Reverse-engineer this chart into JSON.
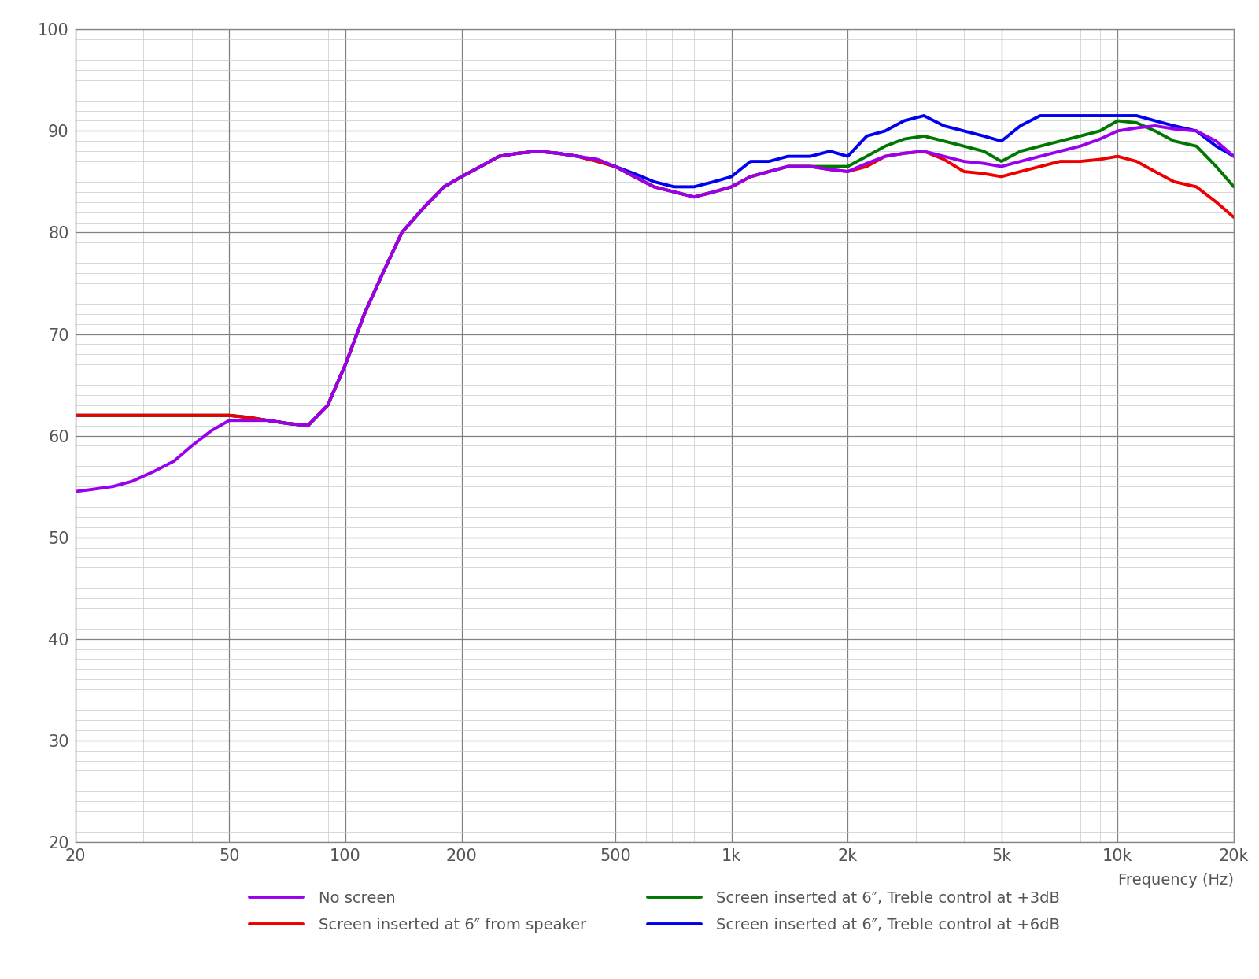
{
  "title": "",
  "xlabel": "Frequency (Hz)",
  "ylabel": "",
  "xmin": 20,
  "xmax": 20000,
  "ymin": 20,
  "ymax": 100,
  "yticks": [
    20,
    30,
    40,
    50,
    60,
    70,
    80,
    90,
    100
  ],
  "xtick_labels": [
    "20",
    "50",
    "100",
    "200",
    "500",
    "1k",
    "2k",
    "5k",
    "10k",
    "20k"
  ],
  "xtick_values": [
    20,
    50,
    100,
    200,
    500,
    1000,
    2000,
    5000,
    10000,
    20000
  ],
  "bg_color": "#ffffff",
  "grid_major_color": "#808080",
  "grid_minor_color": "#c8c8c8",
  "legend_entries": [
    {
      "label": "No screen",
      "color": "#9900ee"
    },
    {
      "label": "Screen inserted at 6″ from speaker",
      "color": "#ee0000"
    },
    {
      "label": "Screen inserted at 6″, Treble control at +3dB",
      "color": "#007700"
    },
    {
      "label": "Screen inserted at 6″, Treble control at +6dB",
      "color": "#0000ee"
    }
  ],
  "line_width": 2.8,
  "freqs": [
    20,
    22,
    25,
    28,
    32,
    36,
    40,
    45,
    50,
    56,
    63,
    71,
    80,
    90,
    100,
    112,
    125,
    140,
    160,
    180,
    200,
    224,
    250,
    280,
    315,
    355,
    400,
    450,
    500,
    560,
    630,
    710,
    800,
    900,
    1000,
    1120,
    1250,
    1400,
    1600,
    1800,
    2000,
    2240,
    2500,
    2800,
    3150,
    3550,
    4000,
    4500,
    5000,
    5600,
    6300,
    7100,
    8000,
    9000,
    10000,
    11200,
    12500,
    14000,
    16000,
    18000,
    20000
  ],
  "no_screen": [
    54.5,
    54.7,
    55.0,
    55.5,
    56.5,
    57.5,
    59.0,
    60.5,
    61.5,
    61.5,
    61.5,
    61.2,
    61.0,
    63.0,
    67.0,
    72.0,
    76.0,
    80.0,
    82.5,
    84.5,
    85.5,
    86.5,
    87.5,
    87.8,
    88.0,
    87.8,
    87.5,
    87.2,
    86.5,
    85.5,
    84.5,
    84.0,
    83.5,
    84.0,
    84.5,
    85.5,
    86.0,
    86.5,
    86.5,
    86.2,
    86.0,
    86.8,
    87.5,
    87.8,
    88.0,
    87.5,
    87.0,
    86.8,
    86.5,
    87.0,
    87.5,
    88.0,
    88.5,
    89.2,
    90.0,
    90.3,
    90.5,
    90.2,
    90.0,
    89.0,
    87.5
  ],
  "screen_6in": [
    62.0,
    62.0,
    62.0,
    62.0,
    62.0,
    62.0,
    62.0,
    62.0,
    62.0,
    61.8,
    61.5,
    61.2,
    61.0,
    63.0,
    67.0,
    72.0,
    76.0,
    80.0,
    82.5,
    84.5,
    85.5,
    86.5,
    87.5,
    87.8,
    88.0,
    87.8,
    87.5,
    87.0,
    86.5,
    85.5,
    84.5,
    84.0,
    83.5,
    84.0,
    84.5,
    85.5,
    86.0,
    86.5,
    86.5,
    86.2,
    86.0,
    86.5,
    87.5,
    87.8,
    88.0,
    87.2,
    86.0,
    85.8,
    85.5,
    86.0,
    86.5,
    87.0,
    87.0,
    87.2,
    87.5,
    87.0,
    86.0,
    85.0,
    84.5,
    83.0,
    81.5
  ],
  "screen_3db": [
    62.0,
    62.0,
    62.0,
    62.0,
    62.0,
    62.0,
    62.0,
    62.0,
    62.0,
    61.8,
    61.5,
    61.2,
    61.0,
    63.0,
    67.0,
    72.0,
    76.0,
    80.0,
    82.5,
    84.5,
    85.5,
    86.5,
    87.5,
    87.8,
    88.0,
    87.8,
    87.5,
    87.0,
    86.5,
    85.5,
    84.5,
    84.0,
    83.5,
    84.0,
    84.5,
    85.5,
    86.0,
    86.5,
    86.5,
    86.5,
    86.5,
    87.5,
    88.5,
    89.2,
    89.5,
    89.0,
    88.5,
    88.0,
    87.0,
    88.0,
    88.5,
    89.0,
    89.5,
    90.0,
    91.0,
    90.8,
    90.0,
    89.0,
    88.5,
    86.5,
    84.5
  ],
  "screen_6db": [
    62.0,
    62.0,
    62.0,
    62.0,
    62.0,
    62.0,
    62.0,
    62.0,
    62.0,
    61.8,
    61.5,
    61.2,
    61.0,
    63.0,
    67.0,
    72.0,
    76.0,
    80.0,
    82.5,
    84.5,
    85.5,
    86.5,
    87.5,
    87.8,
    88.0,
    87.8,
    87.5,
    87.0,
    86.5,
    85.8,
    85.0,
    84.5,
    84.5,
    85.0,
    85.5,
    87.0,
    87.0,
    87.5,
    87.5,
    88.0,
    87.5,
    89.5,
    90.0,
    91.0,
    91.5,
    90.5,
    90.0,
    89.5,
    89.0,
    90.5,
    91.5,
    91.5,
    91.5,
    91.5,
    91.5,
    91.5,
    91.0,
    90.5,
    90.0,
    88.5,
    87.5
  ]
}
